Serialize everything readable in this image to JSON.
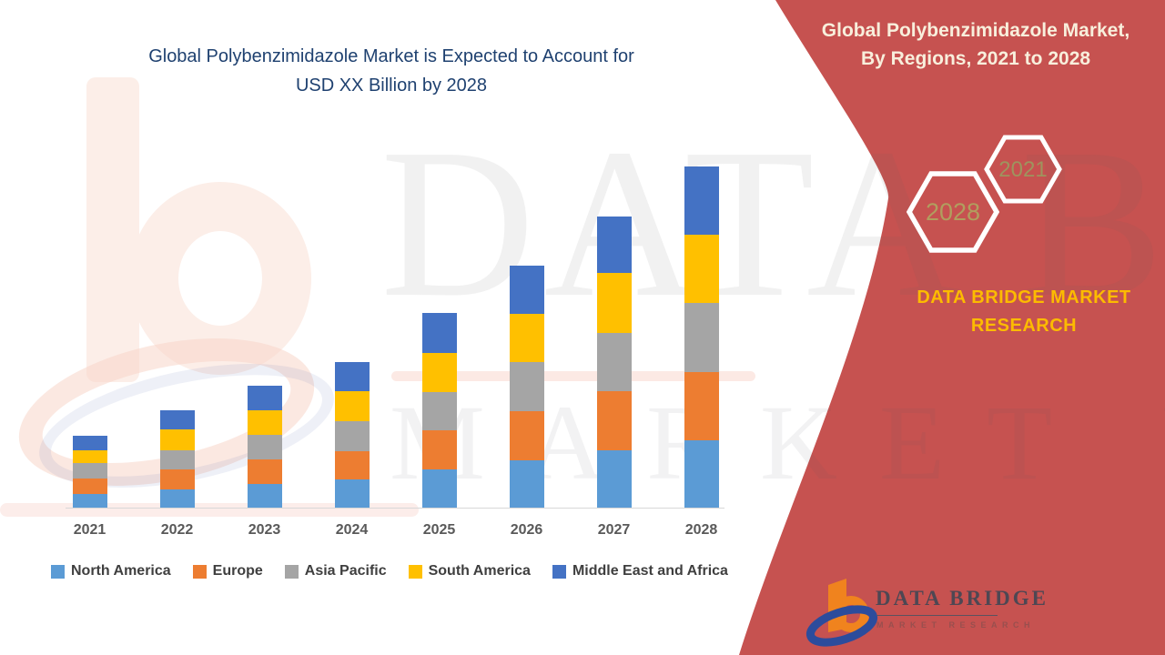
{
  "title": {
    "line1": "Global Polybenzimidazole Market is Expected to Account for",
    "line2": "USD XX Billion by 2028"
  },
  "right_panel": {
    "heading_line1": "Global Polybenzimidazole Market,",
    "heading_line2": "By Regions, 2021 to 2028",
    "hexagon_back": {
      "label": "2028",
      "text_color": "#b19e5e"
    },
    "hexagon_front": {
      "label": "2021",
      "text_color": "#9e945e"
    },
    "brand_line1": "DATA BRIDGE MARKET",
    "brand_line2": "RESEARCH"
  },
  "footer_logo": {
    "text": "DATA BRIDGE",
    "subtext": "MARKET RESEARCH"
  },
  "watermark": {
    "line1": "DATA BRIDGE",
    "line2": "MARKET RESEARCH"
  },
  "colors": {
    "panel_red": "#c65250",
    "title_blue": "#1f4170",
    "brand_gold": "#fcbb00",
    "heading_cream": "#f8efdc",
    "axis_gray": "#d8d8d8",
    "label_gray": "#595959",
    "logo_orange": "#f0831e",
    "logo_blue": "#2c4c9c"
  },
  "chart_data": {
    "type": "bar",
    "stacked": true,
    "title": "Global Polybenzimidazole Market is Expected to Account for USD XX Billion by 2028",
    "categories": [
      "2021",
      "2022",
      "2023",
      "2024",
      "2025",
      "2026",
      "2027",
      "2028"
    ],
    "series": [
      {
        "name": "North America",
        "color": "#5b9bd5",
        "values": [
          15,
          20,
          26,
          31,
          42,
          52,
          63,
          74
        ]
      },
      {
        "name": "Europe",
        "color": "#ed7d31",
        "values": [
          17,
          22,
          27,
          31,
          43,
          54,
          65,
          75
        ]
      },
      {
        "name": "Asia Pacific",
        "color": "#a5a5a5",
        "values": [
          17,
          21,
          27,
          33,
          42,
          54,
          64,
          76
        ]
      },
      {
        "name": "South America",
        "color": "#ffc000",
        "values": [
          14,
          23,
          27,
          33,
          43,
          53,
          66,
          75
        ]
      },
      {
        "name": "Middle East and Africa",
        "color": "#4472c4",
        "values": [
          16,
          21,
          27,
          32,
          44,
          53,
          62,
          75
        ]
      }
    ],
    "totals": [
      79,
      107,
      134,
      160,
      214,
      266,
      320,
      375
    ],
    "xlabel": "",
    "ylabel": "",
    "note": "Values are relative estimates read from bar heights; y-axis is unlabeled (USD XX Billion placeholder).",
    "legend_position": "bottom",
    "grid": false
  }
}
